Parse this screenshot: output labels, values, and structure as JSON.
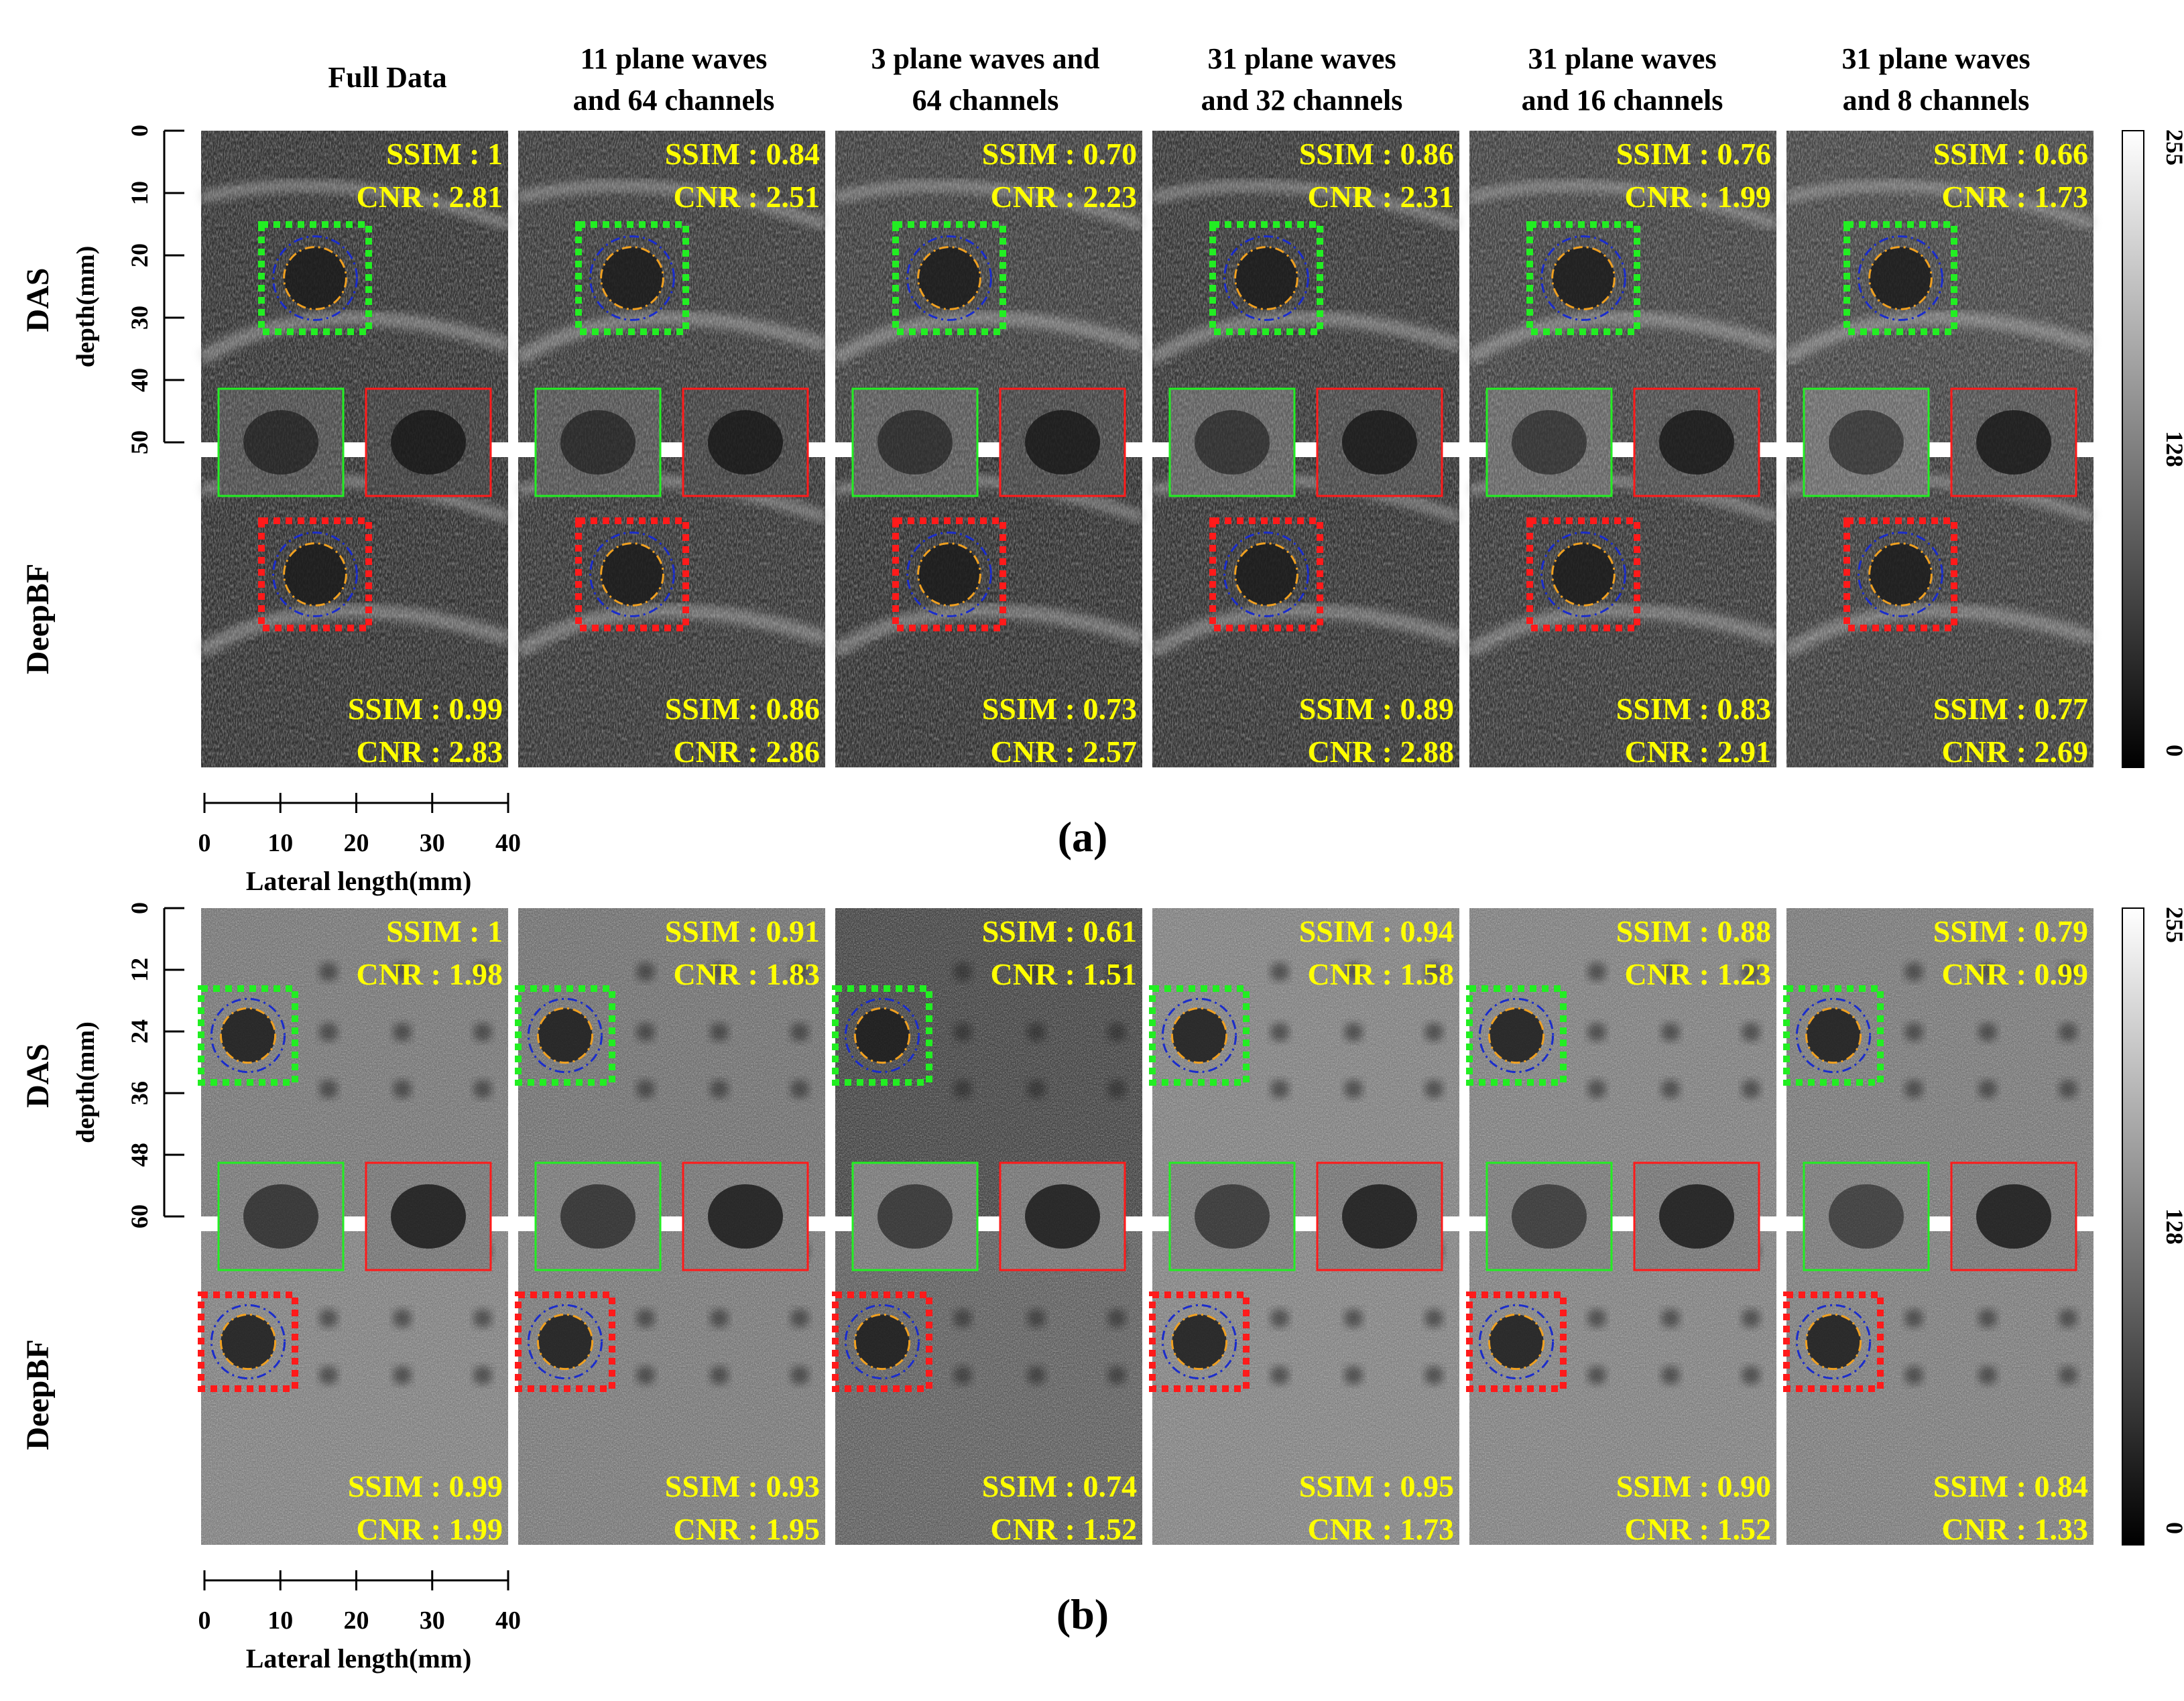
{
  "columns": [
    [
      "Full Data"
    ],
    [
      "11 plane waves",
      "and 64 channels"
    ],
    [
      "3 plane waves and",
      "64 channels"
    ],
    [
      "31 plane waves",
      "and 32 channels"
    ],
    [
      "31 plane waves",
      "and 16 channels"
    ],
    [
      "31 plane waves",
      "and 8 channels"
    ]
  ],
  "row_labels": {
    "top": "DAS",
    "bottom": "DeepBF"
  },
  "depth_label": "depth(mm)",
  "lateral_label": "Lateral length(mm)",
  "lateral_ticks": [
    "0",
    "10",
    "20",
    "30",
    "40"
  ],
  "colorbar_ticks": [
    "255",
    "128",
    "0"
  ],
  "colors": {
    "metric_text": "#ffff00",
    "das_roi": "#22ee22",
    "deepbf_roi": "#ff1a1a",
    "circle_outer": "#1a2ccc",
    "circle_inner": "#f0a020"
  },
  "panels": [
    {
      "label": "(a)",
      "depth_ticks": [
        "0",
        "10",
        "20",
        "30",
        "40",
        "50"
      ],
      "das": [
        {
          "ssim": "SSIM : 1",
          "cnr": "CNR : 2.81"
        },
        {
          "ssim": "SSIM : 0.84",
          "cnr": "CNR : 2.51"
        },
        {
          "ssim": "SSIM : 0.70",
          "cnr": "CNR : 2.23"
        },
        {
          "ssim": "SSIM : 0.86",
          "cnr": "CNR : 2.31"
        },
        {
          "ssim": "SSIM : 0.76",
          "cnr": "CNR : 1.99"
        },
        {
          "ssim": "SSIM : 0.66",
          "cnr": "CNR : 1.73"
        }
      ],
      "deepbf": [
        {
          "ssim": "SSIM : 0.99",
          "cnr": "CNR : 2.83"
        },
        {
          "ssim": "SSIM : 0.86",
          "cnr": "CNR : 2.86"
        },
        {
          "ssim": "SSIM : 0.73",
          "cnr": "CNR : 2.57"
        },
        {
          "ssim": "SSIM : 0.89",
          "cnr": "CNR : 2.88"
        },
        {
          "ssim": "SSIM : 0.83",
          "cnr": "CNR : 2.91"
        },
        {
          "ssim": "SSIM : 0.77",
          "cnr": "CNR : 2.69"
        }
      ]
    },
    {
      "label": "(b)",
      "depth_ticks": [
        "0",
        "12",
        "24",
        "36",
        "48",
        "60"
      ],
      "das": [
        {
          "ssim": "SSIM : 1",
          "cnr": "CNR : 1.98"
        },
        {
          "ssim": "SSIM : 0.91",
          "cnr": "CNR : 1.83"
        },
        {
          "ssim": "SSIM : 0.61",
          "cnr": "CNR : 1.51"
        },
        {
          "ssim": "SSIM : 0.94",
          "cnr": "CNR : 1.58"
        },
        {
          "ssim": "SSIM : 0.88",
          "cnr": "CNR : 1.23"
        },
        {
          "ssim": "SSIM : 0.79",
          "cnr": "CNR : 0.99"
        }
      ],
      "deepbf": [
        {
          "ssim": "SSIM : 0.99",
          "cnr": "CNR : 1.99"
        },
        {
          "ssim": "SSIM : 0.93",
          "cnr": "CNR : 1.95"
        },
        {
          "ssim": "SSIM : 0.74",
          "cnr": "CNR : 1.52"
        },
        {
          "ssim": "SSIM : 0.95",
          "cnr": "CNR : 1.73"
        },
        {
          "ssim": "SSIM : 0.90",
          "cnr": "CNR : 1.52"
        },
        {
          "ssim": "SSIM : 0.84",
          "cnr": "CNR : 1.33"
        }
      ]
    }
  ]
}
